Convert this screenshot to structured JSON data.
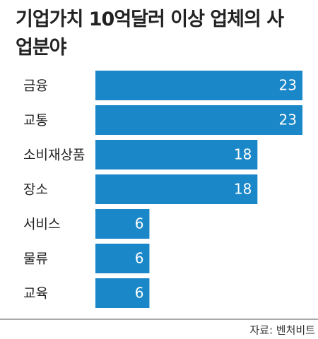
{
  "chart_data": {
    "type": "bar",
    "orientation": "horizontal",
    "title": "기업가치 10억달러 이상 업체의 사업분야",
    "categories": [
      "금융",
      "교통",
      "소비재상품",
      "장소",
      "서비스",
      "물류",
      "교육"
    ],
    "values": [
      23,
      23,
      18,
      18,
      6,
      6,
      6
    ],
    "color": "#1a87c8",
    "source": "자료: 벤처비트"
  }
}
